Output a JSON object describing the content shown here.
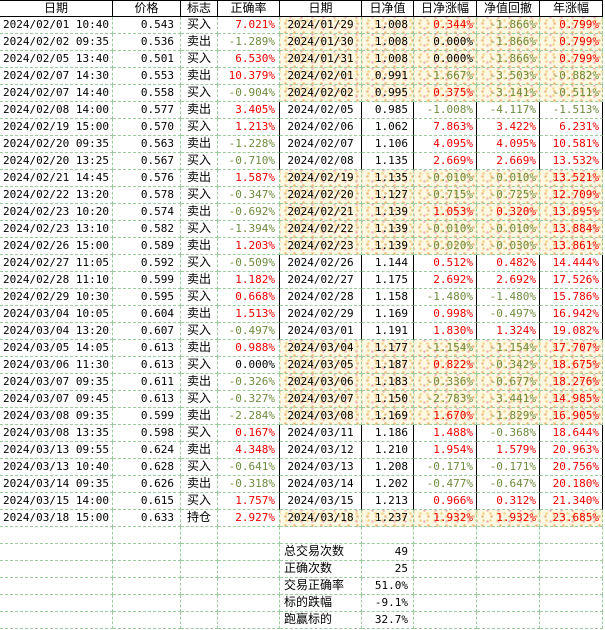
{
  "left_table": {
    "headers": [
      "日期",
      "价格",
      "标志",
      "正确率"
    ],
    "rows": [
      [
        "2024/02/01 10:40",
        "0.543",
        "买入",
        "7.021%"
      ],
      [
        "2024/02/02 09:35",
        "0.536",
        "卖出",
        "-1.289%"
      ],
      [
        "2024/02/05 13:40",
        "0.501",
        "买入",
        "6.530%"
      ],
      [
        "2024/02/07 14:30",
        "0.553",
        "卖出",
        "10.379%"
      ],
      [
        "2024/02/07 14:40",
        "0.558",
        "买入",
        "-0.904%"
      ],
      [
        "2024/02/08 14:00",
        "0.577",
        "卖出",
        "3.405%"
      ],
      [
        "2024/02/19 15:00",
        "0.570",
        "买入",
        "1.213%"
      ],
      [
        "2024/02/20 09:35",
        "0.563",
        "卖出",
        "-1.228%"
      ],
      [
        "2024/02/20 13:25",
        "0.567",
        "买入",
        "-0.710%"
      ],
      [
        "2024/02/21 14:45",
        "0.576",
        "卖出",
        "1.587%"
      ],
      [
        "2024/02/22 13:20",
        "0.578",
        "买入",
        "-0.347%"
      ],
      [
        "2024/02/23 10:20",
        "0.574",
        "卖出",
        "-0.692%"
      ],
      [
        "2024/02/23 13:10",
        "0.582",
        "买入",
        "-1.394%"
      ],
      [
        "2024/02/26 15:00",
        "0.589",
        "卖出",
        "1.203%"
      ],
      [
        "2024/02/27 11:05",
        "0.592",
        "买入",
        "-0.509%"
      ],
      [
        "2024/02/28 11:10",
        "0.599",
        "卖出",
        "1.182%"
      ],
      [
        "2024/02/29 10:30",
        "0.595",
        "买入",
        "0.668%"
      ],
      [
        "2024/03/04 10:05",
        "0.604",
        "卖出",
        "1.513%"
      ],
      [
        "2024/03/04 13:20",
        "0.607",
        "买入",
        "-0.497%"
      ],
      [
        "2024/03/05 14:05",
        "0.613",
        "卖出",
        "0.988%"
      ],
      [
        "2024/03/06 11:30",
        "0.613",
        "买入",
        "0.000%"
      ],
      [
        "2024/03/07 09:35",
        "0.611",
        "卖出",
        "-0.326%"
      ],
      [
        "2024/03/07 09:45",
        "0.613",
        "买入",
        "-0.327%"
      ],
      [
        "2024/03/08 09:35",
        "0.599",
        "卖出",
        "-2.284%"
      ],
      [
        "2024/03/08 13:35",
        "0.598",
        "买入",
        "0.167%"
      ],
      [
        "2024/03/13 09:55",
        "0.624",
        "卖出",
        "4.348%"
      ],
      [
        "2024/03/13 10:40",
        "0.628",
        "买入",
        "-0.641%"
      ],
      [
        "2024/03/14 09:35",
        "0.626",
        "卖出",
        "-0.318%"
      ],
      [
        "2024/03/15 14:00",
        "0.615",
        "买入",
        "1.757%"
      ],
      [
        "2024/03/18 15:00",
        "0.633",
        "持仓",
        "2.927%"
      ]
    ]
  },
  "right_table": {
    "headers": [
      "日期",
      "日净值",
      "日净涨幅",
      "净值回撤",
      "年涨幅"
    ],
    "rows": [
      [
        "2024/01/29",
        "1.008",
        "0.344%",
        "-1.866%",
        "0.799%"
      ],
      [
        "2024/01/30",
        "1.008",
        "0.000%",
        "-1.866%",
        "0.799%"
      ],
      [
        "2024/01/31",
        "1.008",
        "0.000%",
        "-1.866%",
        "0.799%"
      ],
      [
        "2024/02/01",
        "0.991",
        "-1.667%",
        "-3.503%",
        "-0.882%"
      ],
      [
        "2024/02/02",
        "0.995",
        "0.375%",
        "-3.141%",
        "-0.511%"
      ],
      [
        "2024/02/05",
        "0.985",
        "-1.008%",
        "-4.117%",
        "-1.513%"
      ],
      [
        "2024/02/06",
        "1.062",
        "7.863%",
        "3.422%",
        "6.231%"
      ],
      [
        "2024/02/07",
        "1.106",
        "4.095%",
        "4.095%",
        "10.581%"
      ],
      [
        "2024/02/08",
        "1.135",
        "2.669%",
        "2.669%",
        "13.532%"
      ],
      [
        "2024/02/19",
        "1.135",
        "-0.010%",
        "-0.010%",
        "13.521%"
      ],
      [
        "2024/02/20",
        "1.127",
        "-0.715%",
        "-0.725%",
        "12.709%"
      ],
      [
        "2024/02/21",
        "1.139",
        "1.053%",
        "0.320%",
        "13.895%"
      ],
      [
        "2024/02/22",
        "1.139",
        "-0.010%",
        "-0.010%",
        "13.884%"
      ],
      [
        "2024/02/23",
        "1.139",
        "-0.020%",
        "-0.030%",
        "13.861%"
      ],
      [
        "2024/02/26",
        "1.144",
        "0.512%",
        "0.482%",
        "14.444%"
      ],
      [
        "2024/02/27",
        "1.175",
        "2.692%",
        "2.692%",
        "17.526%"
      ],
      [
        "2024/02/28",
        "1.158",
        "-1.480%",
        "-1.480%",
        "15.786%"
      ],
      [
        "2024/02/29",
        "1.169",
        "0.998%",
        "-0.497%",
        "16.942%"
      ],
      [
        "2024/03/01",
        "1.191",
        "1.830%",
        "1.324%",
        "19.082%"
      ],
      [
        "2024/03/04",
        "1.177",
        "-1.154%",
        "-1.154%",
        "17.707%"
      ],
      [
        "2024/03/05",
        "1.187",
        "0.822%",
        "-0.342%",
        "18.675%"
      ],
      [
        "2024/03/06",
        "1.183",
        "-0.336%",
        "-0.677%",
        "18.276%"
      ],
      [
        "2024/03/07",
        "1.150",
        "-2.783%",
        "-3.441%",
        "14.985%"
      ],
      [
        "2024/03/08",
        "1.169",
        "1.670%",
        "-1.829%",
        "16.905%"
      ],
      [
        "2024/03/11",
        "1.186",
        "1.488%",
        "-0.368%",
        "18.644%"
      ],
      [
        "2024/03/12",
        "1.210",
        "1.954%",
        "1.579%",
        "20.963%"
      ],
      [
        "2024/03/13",
        "1.208",
        "-0.171%",
        "-0.171%",
        "20.756%"
      ],
      [
        "2024/03/14",
        "1.202",
        "-0.477%",
        "-0.647%",
        "20.180%"
      ],
      [
        "2024/03/15",
        "1.213",
        "0.966%",
        "0.312%",
        "21.340%"
      ],
      [
        "2024/03/18",
        "1.237",
        "1.932%",
        "1.932%",
        "23.685%"
      ]
    ],
    "week_band_highlight": [
      1,
      1,
      1,
      1,
      1,
      0,
      0,
      0,
      0,
      1,
      1,
      1,
      1,
      1,
      0,
      0,
      0,
      0,
      0,
      1,
      1,
      1,
      1,
      1,
      0,
      0,
      0,
      0,
      0,
      1
    ]
  },
  "summary": {
    "rows": [
      {
        "label": "总交易次数",
        "value": "49"
      },
      {
        "label": "正确次数",
        "value": "25"
      },
      {
        "label": "交易正确率",
        "value": "51.0%"
      },
      {
        "label": "标的跌幅",
        "value": "-9.1%"
      },
      {
        "label": "跑赢标的",
        "value": "32.7%"
      }
    ]
  },
  "colors": {
    "positive": "#ee0000",
    "negative": "#6e8b3d",
    "zero": "#000000",
    "gridline": "#9ccc9c",
    "band_background": "#fdf8e2"
  }
}
